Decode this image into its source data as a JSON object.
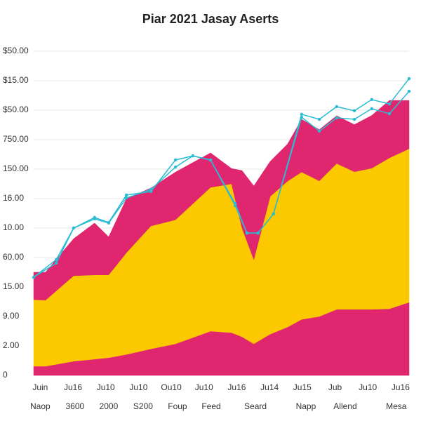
{
  "chart_data": {
    "type": "area",
    "title": "Piar 2021 Jasay Aserts",
    "grid": true,
    "xlim": [
      -0.2,
      11.26
    ],
    "ylim": [
      0,
      11.6
    ],
    "yticks": [
      {
        "value": 0,
        "label": "0"
      },
      {
        "value": 1,
        "label": "2.00"
      },
      {
        "value": 2,
        "label": "9.00"
      },
      {
        "value": 3,
        "label": "15.00"
      },
      {
        "value": 4,
        "label": "60.00"
      },
      {
        "value": 5,
        "label": "10.00"
      },
      {
        "value": 6,
        "label": "16.00"
      },
      {
        "value": 7,
        "label": "150.00"
      },
      {
        "value": 8,
        "label": "750.00"
      },
      {
        "value": 9,
        "label": "$50.00"
      },
      {
        "value": 10,
        "label": "$15.00"
      },
      {
        "value": 11,
        "label": "$50.00"
      }
    ],
    "xticks": [
      {
        "value": 0,
        "label": "Juin"
      },
      {
        "value": 1,
        "label": "Ju16"
      },
      {
        "value": 2,
        "label": "Ju10"
      },
      {
        "value": 3,
        "label": "Ju10"
      },
      {
        "value": 4,
        "label": "Ou10"
      },
      {
        "value": 5,
        "label": "Ju10"
      },
      {
        "value": 6,
        "label": "Ju16"
      },
      {
        "value": 7,
        "label": "Ju14"
      },
      {
        "value": 8,
        "label": "Ju15"
      },
      {
        "value": 9,
        "label": "Jub"
      },
      {
        "value": 10,
        "label": "Ju10"
      },
      {
        "value": 11,
        "label": "Ju16"
      }
    ],
    "xticks2": [
      {
        "value": 0,
        "label": "Naop"
      },
      {
        "value": 1.06,
        "label": "3600"
      },
      {
        "value": 2.09,
        "label": "2000"
      },
      {
        "value": 3.14,
        "label": "S200"
      },
      {
        "value": 4.19,
        "label": "Foup"
      },
      {
        "value": 5.22,
        "label": "Feed"
      },
      {
        "value": 6.57,
        "label": "Seard"
      },
      {
        "value": 8.11,
        "label": "Napp"
      },
      {
        "value": 9.31,
        "label": "Allend"
      },
      {
        "value": 10.87,
        "label": "Mesa"
      }
    ],
    "x": [
      -0.2,
      0.16,
      1.02,
      1.66,
      2.09,
      2.63,
      3.38,
      4.13,
      5.2,
      5.84,
      6.16,
      6.52,
      7.02,
      7.55,
      7.98,
      8.52,
      9.05,
      9.59,
      10.12,
      10.66,
      11.26
    ],
    "series": [
      {
        "color": "#e0266e",
        "values": [
          0.31,
          0.31,
          0.48,
          0.55,
          0.6,
          0.71,
          0.9,
          1.07,
          1.5,
          1.45,
          1.31,
          1.07,
          1.4,
          1.64,
          1.9,
          2.0,
          2.24,
          2.24,
          2.24,
          2.26,
          2.48
        ]
      },
      {
        "color": "#fcc800",
        "values": [
          2.26,
          2.24,
          2.9,
          2.86,
          2.81,
          3.45,
          4.17,
          4.21,
          4.88,
          5.05,
          3.69,
          2.86,
          4.67,
          4.95,
          5.0,
          4.6,
          4.95,
          4.67,
          4.79,
          5.12,
          5.21
        ]
      },
      {
        "color": "#e0266e",
        "values": [
          0.93,
          0.95,
          1.26,
          1.76,
          1.29,
          1.83,
          1.29,
          1.62,
          1.17,
          0.52,
          1.95,
          2.5,
          1.19,
          1.26,
          1.79,
          1.74,
          1.62,
          1.6,
          1.79,
          1.95,
          1.64
        ]
      }
    ],
    "line_x": [
      -0.2,
      0.49,
      1.02,
      1.66,
      2.09,
      2.63,
      3.38,
      4.13,
      4.66,
      5.2,
      5.95,
      6.31,
      6.65,
      7.12,
      7.98,
      8.52,
      9.05,
      9.59,
      10.12,
      10.66,
      11.26
    ],
    "line_series": [
      {
        "color": "#2bbcd4",
        "values": [
          3.33,
          3.81,
          5.0,
          5.36,
          5.19,
          6.12,
          6.24,
          7.31,
          7.45,
          7.31,
          5.76,
          4.83,
          4.83,
          5.48,
          8.86,
          8.69,
          9.12,
          8.98,
          9.36,
          9.21,
          10.07
        ]
      },
      {
        "color": "#2bbcd4",
        "values": [
          3.33,
          3.93,
          5.0,
          5.31,
          5.17,
          6.02,
          6.31,
          7.07,
          7.45,
          7.31,
          5.83,
          4.83,
          4.83,
          5.48,
          8.76,
          8.29,
          8.74,
          8.69,
          9.05,
          8.88,
          9.64
        ]
      }
    ]
  }
}
